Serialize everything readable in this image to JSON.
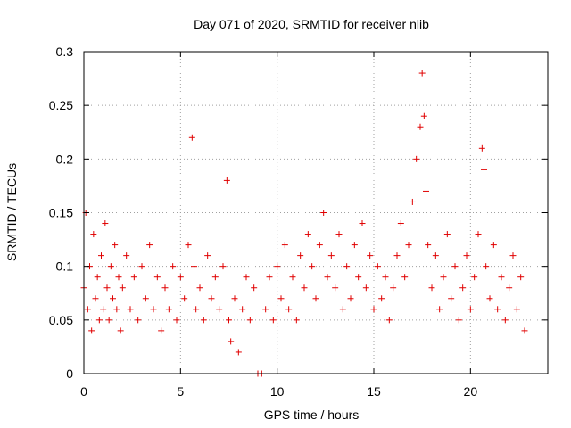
{
  "chart_data": {
    "type": "scatter",
    "title": "Day 071 of 2020, SRMTID for receiver nlib",
    "xlabel": "GPS time / hours",
    "ylabel": "SRMTID / TECUs",
    "xlim": [
      0,
      24
    ],
    "ylim": [
      0,
      0.3
    ],
    "x_ticks": [
      0,
      5,
      10,
      15,
      20
    ],
    "y_ticks": [
      0,
      0.05,
      0.1,
      0.15,
      0.2,
      0.25,
      0.3
    ],
    "x_tick_labels": [
      "0",
      "5",
      "10",
      "15",
      "20"
    ],
    "y_tick_labels": [
      "0",
      "0.05",
      "0.1",
      "0.15",
      "0.2",
      "0.25",
      "0.3"
    ],
    "grid": true,
    "marker": "+",
    "series": [
      {
        "name": "SRMTID",
        "color": "#e00000",
        "x": [
          0.0,
          0.1,
          0.2,
          0.3,
          0.4,
          0.5,
          0.6,
          0.7,
          0.8,
          0.9,
          1.0,
          1.1,
          1.2,
          1.3,
          1.4,
          1.5,
          1.6,
          1.7,
          1.8,
          1.9,
          2.0,
          2.2,
          2.4,
          2.6,
          2.8,
          3.0,
          3.2,
          3.4,
          3.6,
          3.8,
          4.0,
          4.2,
          4.4,
          4.6,
          4.8,
          5.0,
          5.2,
          5.4,
          5.6,
          5.7,
          5.8,
          6.0,
          6.2,
          6.4,
          6.6,
          6.8,
          7.0,
          7.2,
          7.4,
          7.5,
          7.6,
          7.8,
          8.0,
          8.2,
          8.4,
          8.6,
          8.8,
          9.0,
          9.2,
          9.4,
          9.6,
          9.8,
          10.0,
          10.2,
          10.4,
          10.6,
          10.8,
          11.0,
          11.2,
          11.4,
          11.6,
          11.8,
          12.0,
          12.2,
          12.4,
          12.6,
          12.8,
          13.0,
          13.2,
          13.4,
          13.6,
          13.8,
          14.0,
          14.2,
          14.4,
          14.6,
          14.8,
          15.0,
          15.2,
          15.4,
          15.6,
          15.8,
          16.0,
          16.2,
          16.4,
          16.6,
          16.8,
          17.0,
          17.2,
          17.4,
          17.5,
          17.6,
          17.7,
          17.8,
          18.0,
          18.2,
          18.4,
          18.6,
          18.8,
          19.0,
          19.2,
          19.4,
          19.6,
          19.8,
          20.0,
          20.2,
          20.4,
          20.6,
          20.7,
          20.8,
          21.0,
          21.2,
          21.4,
          21.6,
          21.8,
          22.0,
          22.2,
          22.4,
          22.6,
          22.8
        ],
        "y": [
          0.08,
          0.15,
          0.06,
          0.1,
          0.04,
          0.13,
          0.07,
          0.09,
          0.05,
          0.11,
          0.06,
          0.14,
          0.08,
          0.05,
          0.1,
          0.07,
          0.12,
          0.06,
          0.09,
          0.04,
          0.08,
          0.11,
          0.06,
          0.09,
          0.05,
          0.1,
          0.07,
          0.12,
          0.06,
          0.09,
          0.04,
          0.08,
          0.06,
          0.1,
          0.05,
          0.09,
          0.07,
          0.12,
          0.22,
          0.1,
          0.06,
          0.08,
          0.05,
          0.11,
          0.07,
          0.09,
          0.06,
          0.1,
          0.18,
          0.05,
          0.03,
          0.07,
          0.02,
          0.06,
          0.09,
          0.05,
          0.08,
          0.0,
          0.0,
          0.06,
          0.09,
          0.05,
          0.1,
          0.07,
          0.12,
          0.06,
          0.09,
          0.05,
          0.11,
          0.08,
          0.13,
          0.1,
          0.07,
          0.12,
          0.15,
          0.09,
          0.11,
          0.08,
          0.13,
          0.06,
          0.1,
          0.07,
          0.12,
          0.09,
          0.14,
          0.08,
          0.11,
          0.06,
          0.1,
          0.07,
          0.09,
          0.05,
          0.08,
          0.11,
          0.14,
          0.09,
          0.12,
          0.16,
          0.2,
          0.23,
          0.28,
          0.24,
          0.17,
          0.12,
          0.08,
          0.11,
          0.06,
          0.09,
          0.13,
          0.07,
          0.1,
          0.05,
          0.08,
          0.11,
          0.06,
          0.09,
          0.13,
          0.21,
          0.19,
          0.1,
          0.07,
          0.12,
          0.06,
          0.09,
          0.05,
          0.08,
          0.11,
          0.06,
          0.09,
          0.04
        ]
      }
    ]
  }
}
